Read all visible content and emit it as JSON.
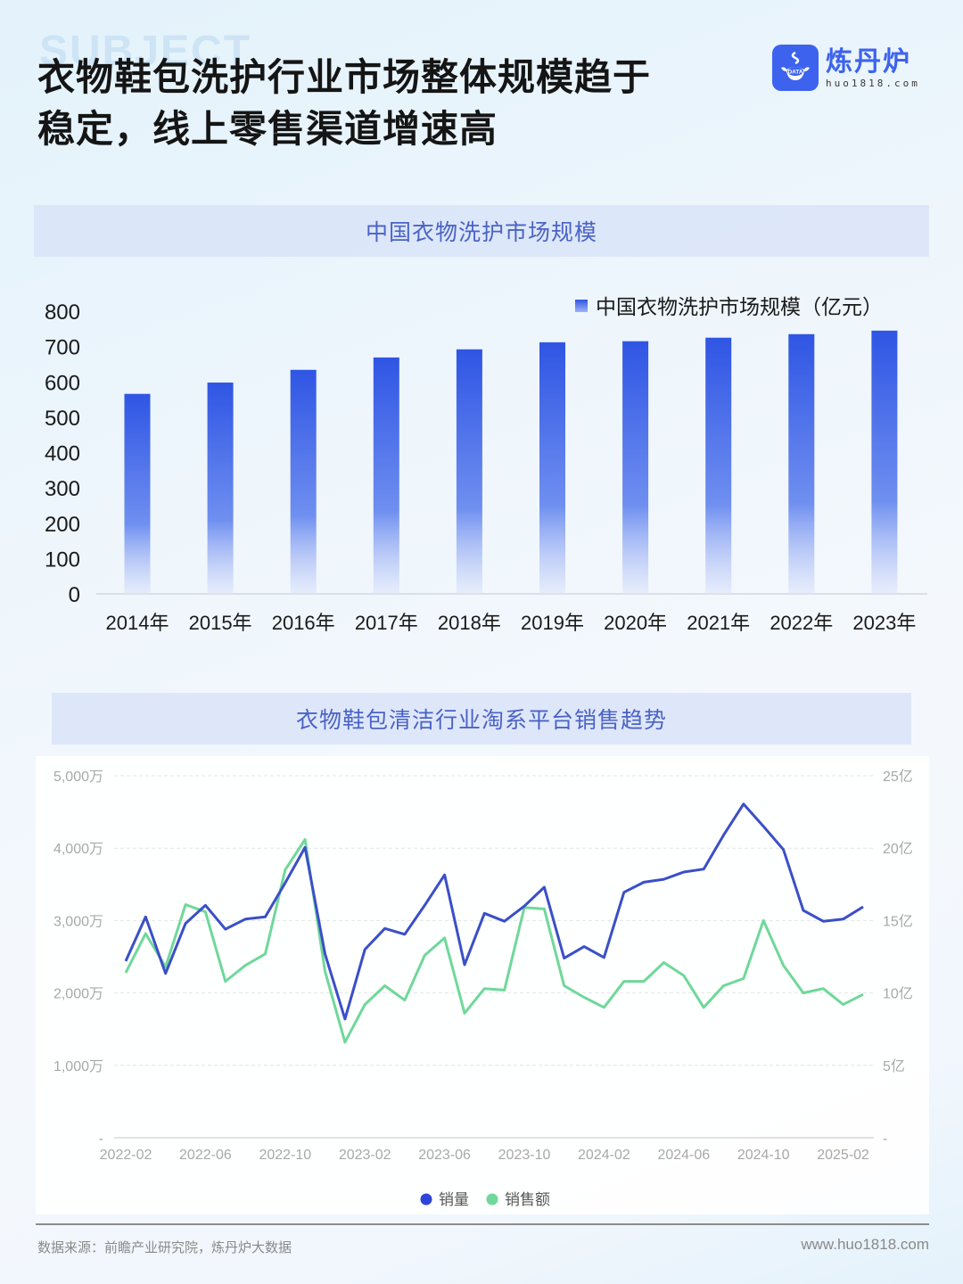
{
  "page": {
    "watermark": "SUBJECT",
    "title_line1": "衣物鞋包洗护行业市场整体规模趋于",
    "title_line2": "稳定，线上零售渠道增速高"
  },
  "logo": {
    "name": "炼丹炉",
    "url": "huo1818.com",
    "badge_text": "DATA",
    "brand_color": "#3d63ee"
  },
  "sections": [
    {
      "header": "中国衣物洗护市场规模"
    },
    {
      "header": "衣物鞋包清洁行业淘系平台销售趋势"
    }
  ],
  "footer": {
    "source": "数据来源：前瞻产业研究院，炼丹炉大数据",
    "url": "www.huo1818.com"
  },
  "chart_data": [
    {
      "type": "bar",
      "title": "中国衣物洗护市场规模",
      "categories": [
        "2014年",
        "2015年",
        "2016年",
        "2017年",
        "2018年",
        "2019年",
        "2020年",
        "2021年",
        "2022年",
        "2023年"
      ],
      "series": [
        {
          "name": "中国衣物洗护市场规模（亿元）",
          "values": [
            566,
            598,
            634,
            669,
            692,
            712,
            715,
            725,
            735,
            745
          ],
          "color": "#2f55e4"
        }
      ],
      "xlabel": "",
      "ylabel": "",
      "yticks": [
        0,
        100,
        200,
        300,
        400,
        500,
        600,
        700,
        800
      ],
      "ylim": [
        0,
        800
      ],
      "grid": false,
      "legend_position": "top-right"
    },
    {
      "type": "line",
      "title": "衣物鞋包清洁行业淘系平台销售趋势",
      "x": [
        "2022-02",
        "2022-03",
        "2022-04",
        "2022-05",
        "2022-06",
        "2022-07",
        "2022-08",
        "2022-09",
        "2022-10",
        "2022-11",
        "2022-12",
        "2023-01",
        "2023-02",
        "2023-03",
        "2023-04",
        "2023-05",
        "2023-06",
        "2023-07",
        "2023-08",
        "2023-09",
        "2023-10",
        "2023-11",
        "2023-12",
        "2024-01",
        "2024-02",
        "2024-03",
        "2024-04",
        "2024-05",
        "2024-06",
        "2024-07",
        "2024-08",
        "2024-09",
        "2024-10",
        "2024-11",
        "2024-12",
        "2025-01",
        "2025-02",
        "2025-03"
      ],
      "xtick_labels": [
        "2022-02",
        "2022-06",
        "2022-10",
        "2023-02",
        "2023-06",
        "2023-10",
        "2024-02",
        "2024-06",
        "2024-10",
        "2025-02"
      ],
      "series": [
        {
          "name": "销量",
          "axis": "left",
          "unit": "万",
          "color": "#3a4fc8",
          "values": [
            2440,
            3050,
            2270,
            2960,
            3210,
            2880,
            3020,
            3050,
            3520,
            4010,
            2540,
            1640,
            2600,
            2890,
            2810,
            3210,
            3630,
            2390,
            3100,
            2990,
            3200,
            3460,
            2480,
            2640,
            2490,
            3390,
            3530,
            3570,
            3670,
            3710,
            4180,
            4610,
            4300,
            3980,
            3140,
            2990,
            3020,
            3190
          ]
        },
        {
          "name": "销售额",
          "axis": "right",
          "unit": "亿",
          "color": "#6fd89a",
          "values": [
            11.4,
            14.1,
            11.8,
            16.1,
            15.6,
            10.8,
            11.9,
            12.7,
            18.5,
            20.6,
            11.5,
            6.6,
            9.2,
            10.5,
            9.5,
            12.6,
            13.8,
            8.6,
            10.3,
            10.2,
            15.9,
            15.8,
            10.5,
            9.7,
            9.0,
            10.8,
            10.8,
            12.1,
            11.2,
            9.0,
            10.5,
            11.0,
            15.0,
            11.9,
            10.0,
            10.3,
            9.2,
            9.9
          ]
        }
      ],
      "left_axis": {
        "ticks": [
          "-",
          "1,000万",
          "2,000万",
          "3,000万",
          "4,000万",
          "5,000万"
        ],
        "ylim": [
          0,
          5000
        ]
      },
      "right_axis": {
        "ticks": [
          "-",
          "5亿",
          "10亿",
          "15亿",
          "20亿",
          "25亿"
        ],
        "ylim": [
          0,
          25
        ]
      },
      "grid": true,
      "legend_position": "bottom-center"
    }
  ]
}
